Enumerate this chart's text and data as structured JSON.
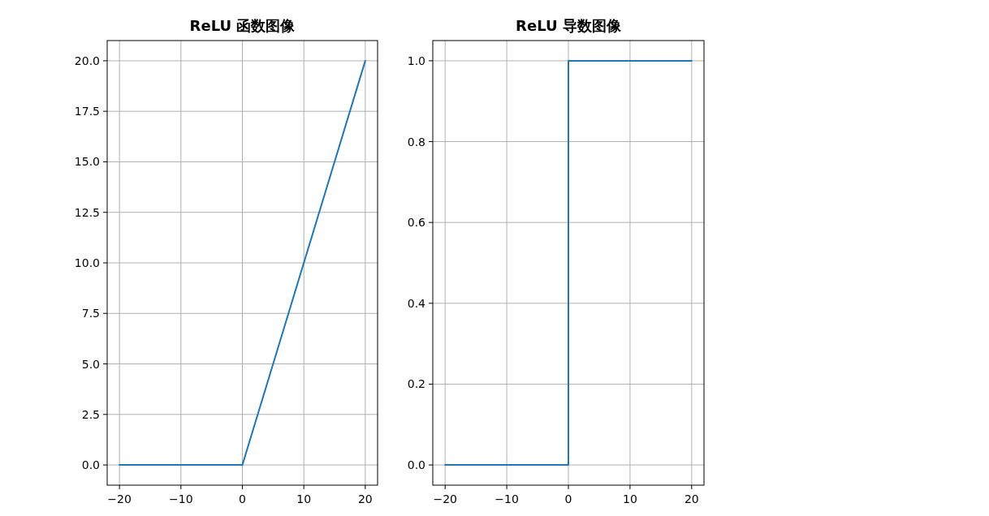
{
  "chart_data": [
    {
      "type": "line",
      "title": "ReLU 函数图像",
      "x": [
        -20,
        0,
        20
      ],
      "series": [
        {
          "color": "#1f77b4",
          "values": [
            0,
            0,
            20
          ]
        }
      ],
      "xlim": [
        -22,
        22
      ],
      "ylim": [
        -1,
        21
      ],
      "xticks": [
        -20,
        -10,
        0,
        10,
        20
      ],
      "yticks": [
        {
          "value": 0,
          "label": "0.0"
        },
        {
          "value": 2.5,
          "label": "2.5"
        },
        {
          "value": 5,
          "label": "5.0"
        },
        {
          "value": 7.5,
          "label": "7.5"
        },
        {
          "value": 10,
          "label": "10.0"
        },
        {
          "value": 12.5,
          "label": "12.5"
        },
        {
          "value": 15,
          "label": "15.0"
        },
        {
          "value": 17.5,
          "label": "17.5"
        },
        {
          "value": 20,
          "label": "20.0"
        }
      ],
      "grid": true
    },
    {
      "type": "line",
      "title": "ReLU 导数图像",
      "x": [
        -20,
        0,
        0,
        20
      ],
      "series": [
        {
          "color": "#1f77b4",
          "values": [
            0,
            0,
            1,
            1
          ]
        }
      ],
      "xlim": [
        -22,
        22
      ],
      "ylim": [
        -0.05,
        1.05
      ],
      "xticks": [
        -20,
        -10,
        0,
        10,
        20
      ],
      "yticks": [
        {
          "value": 0,
          "label": "0.0"
        },
        {
          "value": 0.2,
          "label": "0.2"
        },
        {
          "value": 0.4,
          "label": "0.4"
        },
        {
          "value": 0.6,
          "label": "0.6"
        },
        {
          "value": 0.8,
          "label": "0.8"
        },
        {
          "value": 1,
          "label": "1.0"
        }
      ],
      "grid": true
    }
  ]
}
